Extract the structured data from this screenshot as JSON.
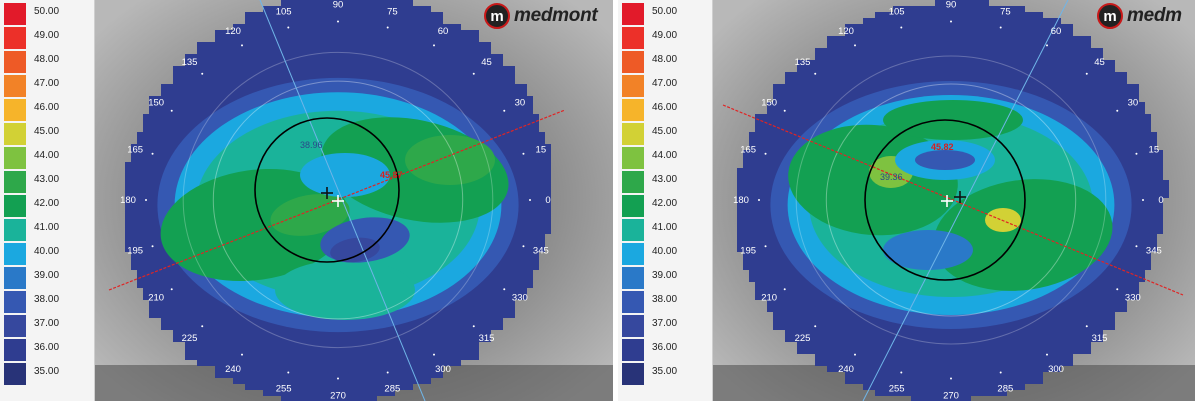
{
  "color_scale": [
    {
      "value": "50.00",
      "color": "#e21a2a"
    },
    {
      "value": "49.00",
      "color": "#ec3029"
    },
    {
      "value": "48.00",
      "color": "#ee5a26"
    },
    {
      "value": "47.00",
      "color": "#f28227"
    },
    {
      "value": "46.00",
      "color": "#f6b42a"
    },
    {
      "value": "45.00",
      "color": "#d2d135"
    },
    {
      "value": "44.00",
      "color": "#7ec240"
    },
    {
      "value": "43.00",
      "color": "#2ea84a"
    },
    {
      "value": "42.00",
      "color": "#13a052"
    },
    {
      "value": "41.00",
      "color": "#1ab39a"
    },
    {
      "value": "40.00",
      "color": "#1ba8e0"
    },
    {
      "value": "39.00",
      "color": "#2a79c8"
    },
    {
      "value": "38.00",
      "color": "#3558b2"
    },
    {
      "value": "37.00",
      "color": "#36489e"
    },
    {
      "value": "36.00",
      "color": "#2f3d90"
    },
    {
      "value": "35.00",
      "color": "#283378"
    }
  ],
  "brand": {
    "logo_letter": "m",
    "name": "medmont",
    "name_cropped": "medm"
  },
  "angles": [
    "90",
    "75",
    "60",
    "45",
    "30",
    "15",
    "0",
    "345",
    "330",
    "315",
    "300",
    "285",
    "270",
    "255",
    "240",
    "225",
    "210",
    "195",
    "180",
    "165",
    "150",
    "135",
    "120",
    "105"
  ],
  "maps": [
    {
      "k_flat": "38.96",
      "k_steep": "45.87"
    },
    {
      "k_flat": "39.36",
      "k_steep": "45.82"
    }
  ]
}
